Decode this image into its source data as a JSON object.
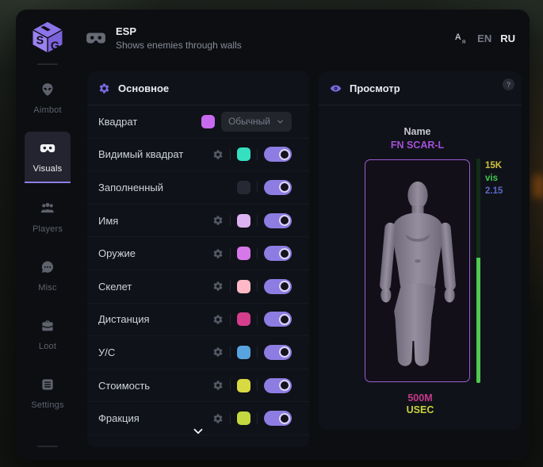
{
  "app": {
    "brand_letters": {
      "s": "S",
      "g": "G"
    },
    "header": {
      "title": "ESP",
      "subtitle": "Shows enemies through walls"
    },
    "translate_icon": {
      "a": "A",
      "ya": "я"
    },
    "languages": {
      "en": "EN",
      "ru": "RU"
    }
  },
  "sidebar": {
    "items": [
      {
        "label": "Aimbot",
        "icon": "alien-icon",
        "active": false
      },
      {
        "label": "Visuals",
        "icon": "vr-goggles-icon",
        "active": true
      },
      {
        "label": "Players",
        "icon": "players-icon",
        "active": false
      },
      {
        "label": "Misc",
        "icon": "chat-dots-icon",
        "active": false
      },
      {
        "label": "Loot",
        "icon": "toolbox-icon",
        "active": false
      },
      {
        "label": "Settings",
        "icon": "list-icon",
        "active": false
      }
    ]
  },
  "main_panel": {
    "title": "Основное",
    "rows": [
      {
        "label": "Квадрат",
        "color": "#c76af0",
        "control": "dropdown",
        "value": "Обычный",
        "gear": false
      },
      {
        "label": "Видимый квадрат",
        "color": "#35e0c1",
        "control": "toggle",
        "on": true,
        "gear": true
      },
      {
        "label": "Заполненный",
        "color": "#262933",
        "control": "toggle",
        "on": true,
        "gear": false
      },
      {
        "label": "Имя",
        "color": "#dcb2f2",
        "control": "toggle",
        "on": true,
        "gear": true
      },
      {
        "label": "Оружие",
        "color": "#d678ea",
        "control": "toggle",
        "on": true,
        "gear": true
      },
      {
        "label": "Скелет",
        "color": "#ffb9c6",
        "control": "toggle",
        "on": true,
        "gear": true
      },
      {
        "label": "Дистанция",
        "color": "#d63d8d",
        "control": "toggle",
        "on": true,
        "gear": true
      },
      {
        "label": "У/С",
        "color": "#58a4de",
        "control": "toggle",
        "on": true,
        "gear": true
      },
      {
        "label": "Стоимость",
        "color": "#d9da41",
        "control": "toggle",
        "on": true,
        "gear": true
      },
      {
        "label": "Фракция",
        "color": "#c3d93f",
        "control": "toggle",
        "on": true,
        "gear": true
      }
    ]
  },
  "preview_panel": {
    "title": "Просмотр",
    "help_badge": "?",
    "target": {
      "name_label": "Name",
      "weapon": "FN SCAR-L",
      "weapon_color": "#a34fd8"
    },
    "stats": [
      {
        "text": "15K",
        "color": "#cfc43c"
      },
      {
        "text": "vis",
        "color": "#3fc94b"
      },
      {
        "text": "2.15",
        "color": "#5b68c9"
      }
    ],
    "health": {
      "fill_percent": 56,
      "color": "#4fc94f"
    },
    "footer": {
      "price": "500M",
      "price_color": "#c73a8c",
      "faction": "USEC",
      "faction_color": "#c8d33c"
    }
  },
  "colors": {
    "accent_toggle": "#8d7de2",
    "brand_purple": "#8d74ea",
    "panel_border": "#9a5ed2"
  }
}
